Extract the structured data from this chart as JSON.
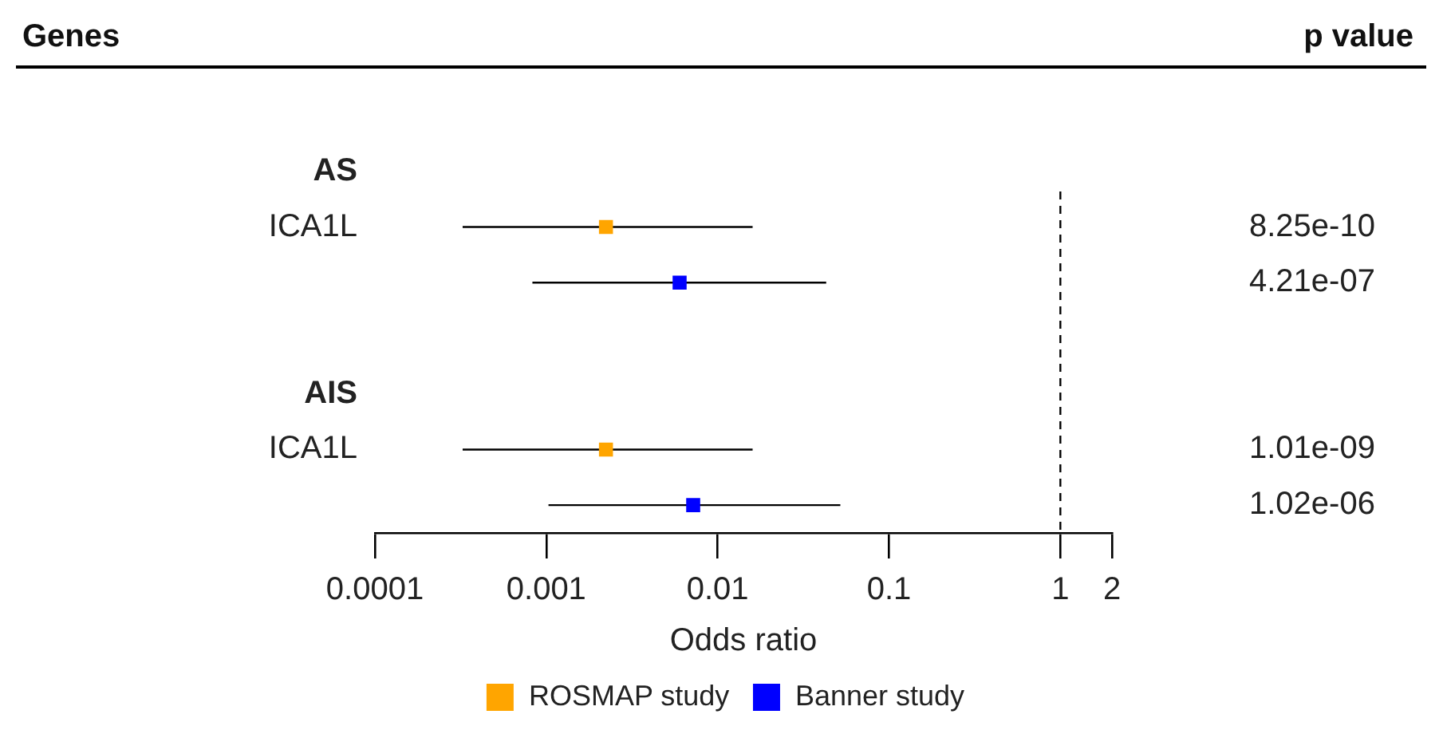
{
  "chart_data": {
    "type": "scatter",
    "orientation": "horizontal",
    "categories": [
      "AS",
      "ICA1L",
      null,
      null,
      "AIS",
      "ICA1L",
      null
    ],
    "y2_categories": [
      null,
      "8.25e-10",
      "4.21e-07",
      null,
      null,
      "1.01e-09",
      "1.02e-06"
    ],
    "xlabel": "Odds ratio",
    "log": "x",
    "xlim": [
      0.0001,
      2
    ],
    "xticks": [
      0.0001,
      0.001,
      0.01,
      0.1,
      1,
      2
    ],
    "marker": "square",
    "legend": "bottom",
    "annotations": [
      "Genes",
      "p value"
    ],
    "ref_lines": [
      {
        "axis": "x",
        "value": 1,
        "line_style": "dashed",
        "color": "#000000"
      }
    ],
    "series": [
      {
        "name": "ROSMAP study",
        "color": "#ffa500",
        "values": [
          null,
          0.00223,
          null,
          null,
          null,
          0.00223,
          null
        ],
        "errors": [
          null,
          [
            0.000325,
            0.016
          ],
          null,
          null,
          null,
          [
            0.000325,
            0.016
          ],
          null
        ]
      },
      {
        "name": "Banner study",
        "color": "#0000ff",
        "values": [
          null,
          null,
          0.006,
          null,
          null,
          null,
          0.0072
        ],
        "errors": [
          null,
          null,
          [
            0.00083,
            0.043
          ],
          null,
          null,
          null,
          [
            0.00103,
            0.052
          ]
        ]
      }
    ]
  }
}
